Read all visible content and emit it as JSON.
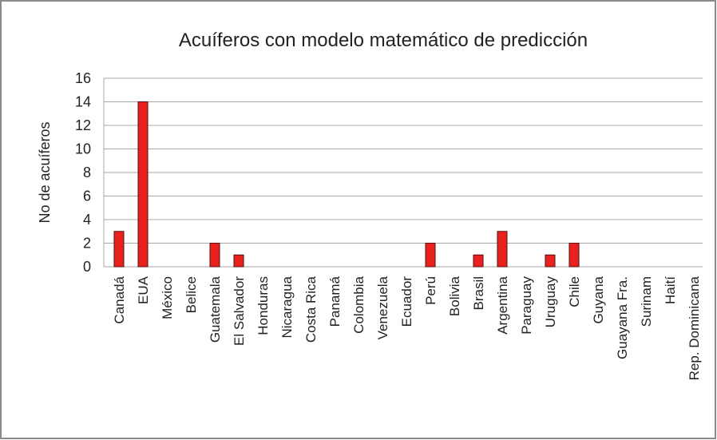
{
  "chart_data": {
    "type": "bar",
    "title": "Acuíferos con modelo matemático de predicción",
    "y_label": "No de acuíferos",
    "categories": [
      "Canadá",
      "EUA",
      "México",
      "Belice",
      "Guatemala",
      "El Salvador",
      "Honduras",
      "Nicaragua",
      "Costa Rica",
      "Panamá",
      "Colombia",
      "Venezuela",
      "Ecuador",
      "Perú",
      "Bolivia",
      "Brasil",
      "Argentina",
      "Paraguay",
      "Uruguay",
      "Chile",
      "Guyana",
      "Guayana Fra.",
      "Surinam",
      "Haití",
      "Rep. Dominicana"
    ],
    "values": [
      3,
      14,
      0,
      0,
      2,
      1,
      0,
      0,
      0,
      0,
      0,
      0,
      0,
      2,
      0,
      1,
      3,
      0,
      1,
      2,
      0,
      0,
      0,
      0,
      0
    ],
    "color": "#e8201e",
    "ylim": [
      0,
      16
    ],
    "yticks": [
      0,
      2,
      4,
      6,
      8,
      10,
      12,
      14,
      16
    ],
    "grid": true
  }
}
